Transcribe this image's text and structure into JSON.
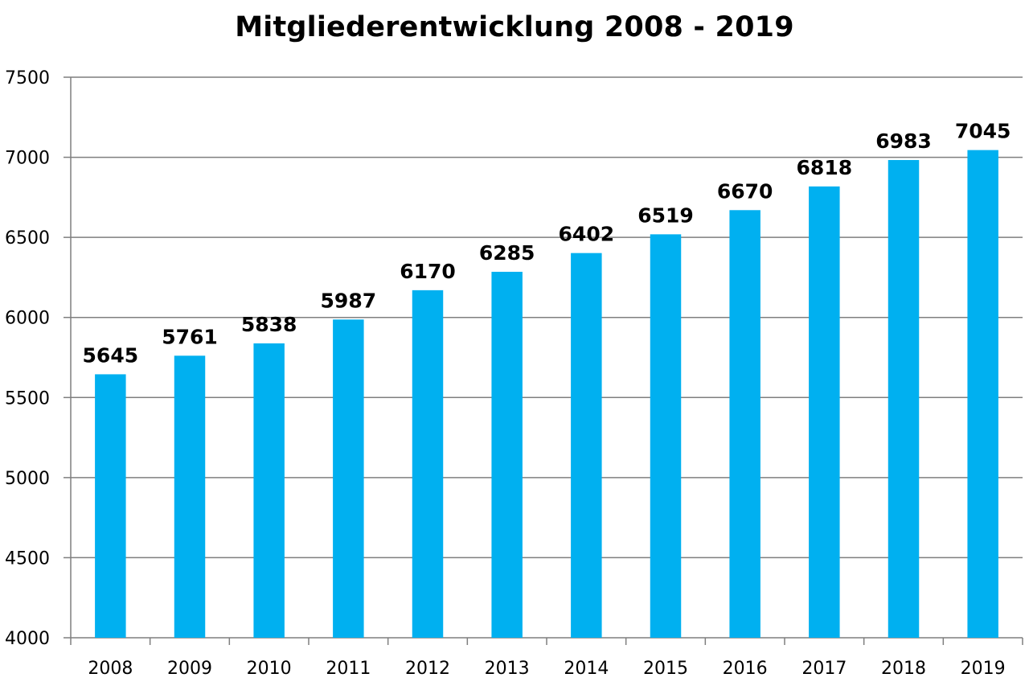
{
  "chart_data": {
    "type": "bar",
    "title": "Mitgliederentwicklung 2008 - 2019",
    "xlabel": "",
    "ylabel": "",
    "categories": [
      "2008",
      "2009",
      "2010",
      "2011",
      "2012",
      "2013",
      "2014",
      "2015",
      "2016",
      "2017",
      "2018",
      "2019"
    ],
    "values": [
      5645,
      5761,
      5838,
      5987,
      6170,
      6285,
      6402,
      6519,
      6670,
      6818,
      6983,
      7045
    ],
    "ylim": [
      4000,
      7500
    ],
    "yticks": [
      "4000",
      "4500",
      "5000",
      "5500",
      "6000",
      "6500",
      "7000",
      "7500"
    ],
    "grid": true,
    "legend": "none",
    "data_labels": true,
    "colors": {
      "bar": "#00b0f0",
      "grid": "#7f7f7f",
      "axis": "#7f7f7f",
      "text": "#000000"
    }
  }
}
